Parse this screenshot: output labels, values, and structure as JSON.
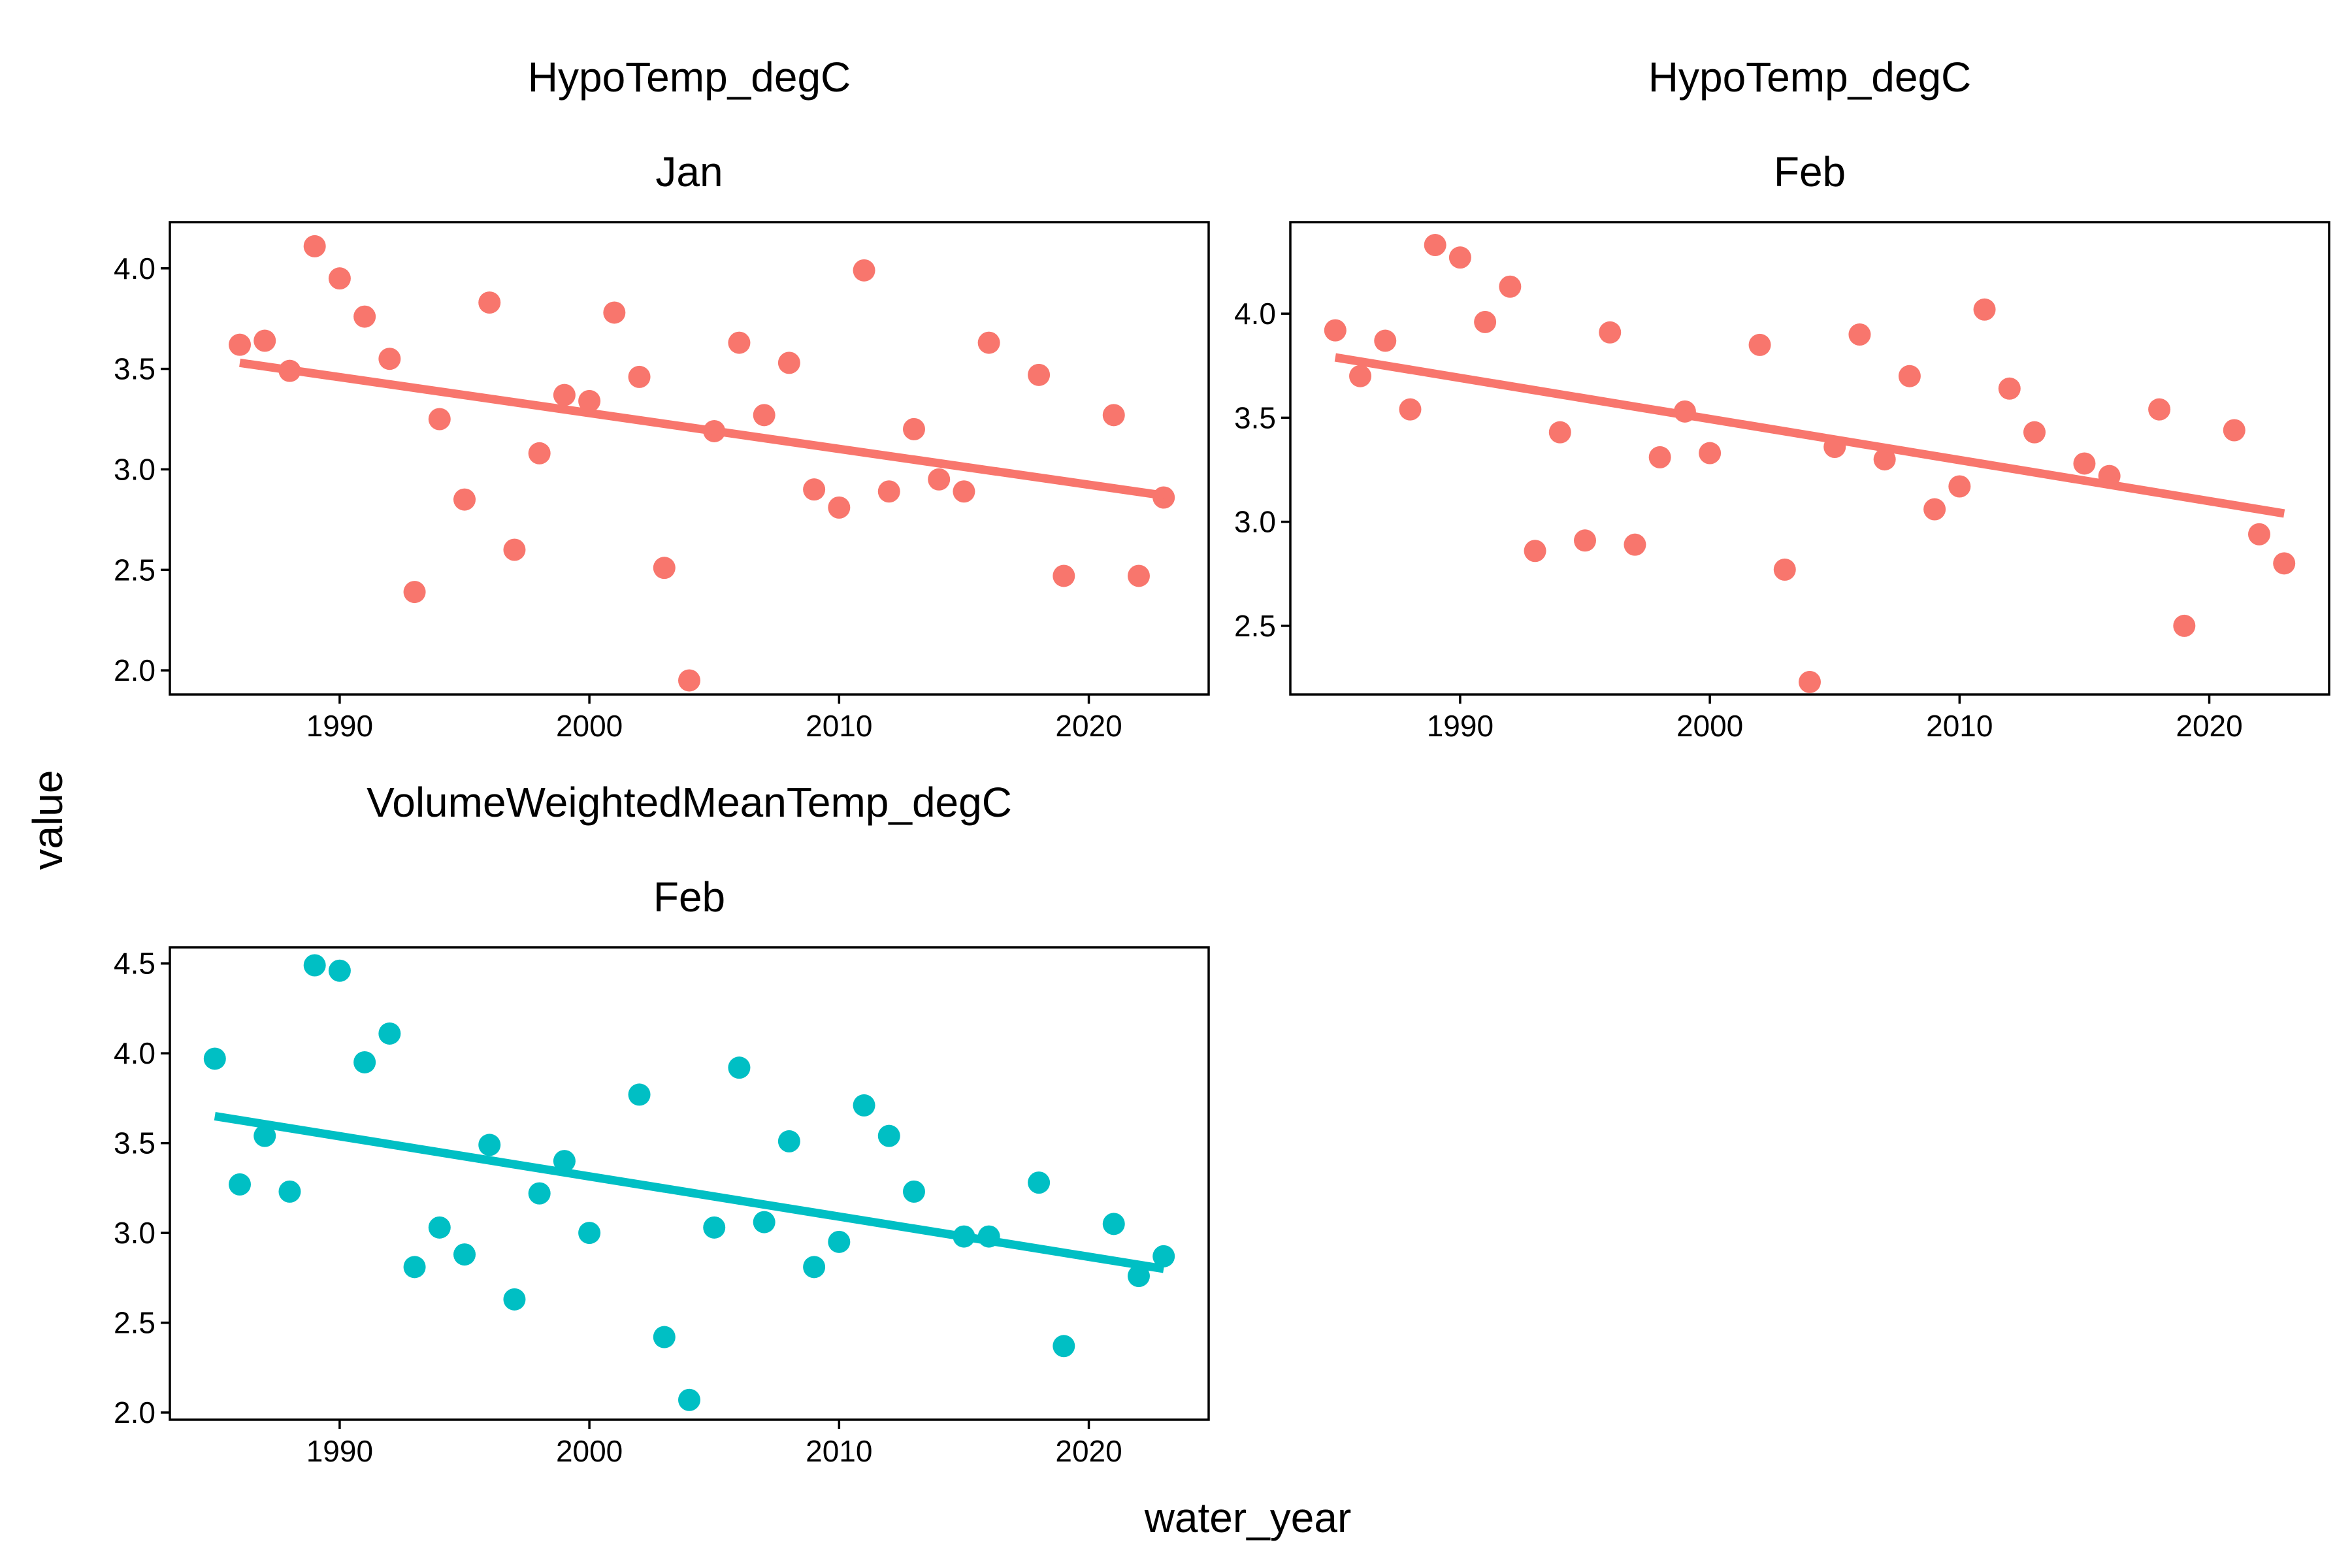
{
  "figure": {
    "y_axis_title": "value",
    "x_axis_title": "water_year"
  },
  "chart_data": [
    {
      "type": "scatter",
      "variable": "HypoTemp_degC",
      "month": "Jan",
      "color": "#F8766D",
      "x_ticks": [
        1990,
        2000,
        2010,
        2020
      ],
      "y_ticks": [
        "2.0",
        "2.5",
        "3.0",
        "3.5",
        "4.0"
      ],
      "xlim": [
        1983.2,
        2024.8
      ],
      "ylim": [
        1.88,
        4.23
      ],
      "series": [
        {
          "x": [
            1986,
            1987,
            1988,
            1989,
            1990,
            1991,
            1992,
            1993,
            1994,
            1995,
            1996,
            1997,
            1998,
            1999,
            2000,
            2001,
            2002,
            2003,
            2004,
            2005,
            2006,
            2007,
            2008,
            2009,
            2010,
            2011,
            2012,
            2013,
            2014,
            2015,
            2016,
            2018,
            2019,
            2021,
            2022,
            2023
          ],
          "y": [
            3.62,
            3.64,
            3.49,
            4.11,
            3.95,
            3.76,
            3.55,
            2.39,
            3.25,
            2.85,
            3.83,
            2.6,
            3.08,
            3.37,
            3.34,
            3.78,
            3.46,
            2.51,
            1.95,
            3.19,
            3.63,
            3.27,
            3.53,
            2.9,
            2.81,
            3.99,
            2.89,
            3.2,
            2.95,
            2.89,
            3.63,
            3.47,
            2.47,
            3.27,
            2.47,
            2.86
          ]
        }
      ],
      "trend": {
        "x": [
          1986,
          2023
        ],
        "y": [
          3.53,
          2.87
        ]
      }
    },
    {
      "type": "scatter",
      "variable": "HypoTemp_degC",
      "month": "Feb",
      "color": "#F8766D",
      "x_ticks": [
        1990,
        2000,
        2010,
        2020
      ],
      "y_ticks": [
        "2.5",
        "3.0",
        "3.5",
        "4.0"
      ],
      "xlim": [
        1983.2,
        2024.8
      ],
      "ylim": [
        2.17,
        4.44
      ],
      "series": [
        {
          "x": [
            1985,
            1986,
            1987,
            1988,
            1989,
            1990,
            1991,
            1992,
            1993,
            1994,
            1995,
            1996,
            1997,
            1998,
            1999,
            2000,
            2002,
            2003,
            2004,
            2005,
            2006,
            2007,
            2008,
            2009,
            2010,
            2011,
            2012,
            2013,
            2015,
            2016,
            2018,
            2019,
            2021,
            2022,
            2023
          ],
          "y": [
            3.92,
            3.7,
            3.87,
            3.54,
            4.33,
            4.27,
            3.96,
            4.13,
            2.86,
            3.43,
            2.91,
            3.91,
            2.89,
            3.31,
            3.53,
            3.33,
            3.85,
            2.77,
            2.23,
            3.36,
            3.9,
            3.3,
            3.7,
            3.06,
            3.17,
            4.02,
            3.64,
            3.43,
            3.28,
            3.22,
            3.54,
            2.5,
            3.44,
            2.94,
            2.8
          ]
        }
      ],
      "trend": {
        "x": [
          1985,
          2023
        ],
        "y": [
          3.79,
          3.04
        ]
      }
    },
    {
      "type": "scatter",
      "variable": "VolumeWeightedMeanTemp_degC",
      "month": "Feb",
      "color": "#00BFC4",
      "x_ticks": [
        1990,
        2000,
        2010,
        2020
      ],
      "y_ticks": [
        "2.0",
        "2.5",
        "3.0",
        "3.5",
        "4.0",
        "4.5"
      ],
      "xlim": [
        1983.2,
        2024.8
      ],
      "ylim": [
        1.96,
        4.59
      ],
      "series": [
        {
          "x": [
            1985,
            1986,
            1987,
            1988,
            1989,
            1990,
            1991,
            1992,
            1993,
            1994,
            1995,
            1996,
            1997,
            1998,
            1999,
            2000,
            2002,
            2003,
            2004,
            2005,
            2006,
            2007,
            2008,
            2009,
            2010,
            2011,
            2012,
            2013,
            2015,
            2016,
            2018,
            2019,
            2021,
            2022,
            2023
          ],
          "y": [
            3.97,
            3.27,
            3.54,
            3.23,
            4.49,
            4.46,
            3.95,
            4.11,
            2.81,
            3.03,
            2.88,
            3.49,
            2.63,
            3.22,
            3.4,
            3.0,
            3.77,
            2.42,
            2.07,
            3.03,
            3.92,
            3.06,
            3.51,
            2.81,
            2.95,
            3.71,
            3.54,
            3.23,
            2.98,
            2.98,
            3.28,
            2.37,
            3.05,
            2.76,
            2.87
          ]
        }
      ],
      "trend": {
        "x": [
          1985,
          2023
        ],
        "y": [
          3.65,
          2.8
        ]
      }
    }
  ]
}
